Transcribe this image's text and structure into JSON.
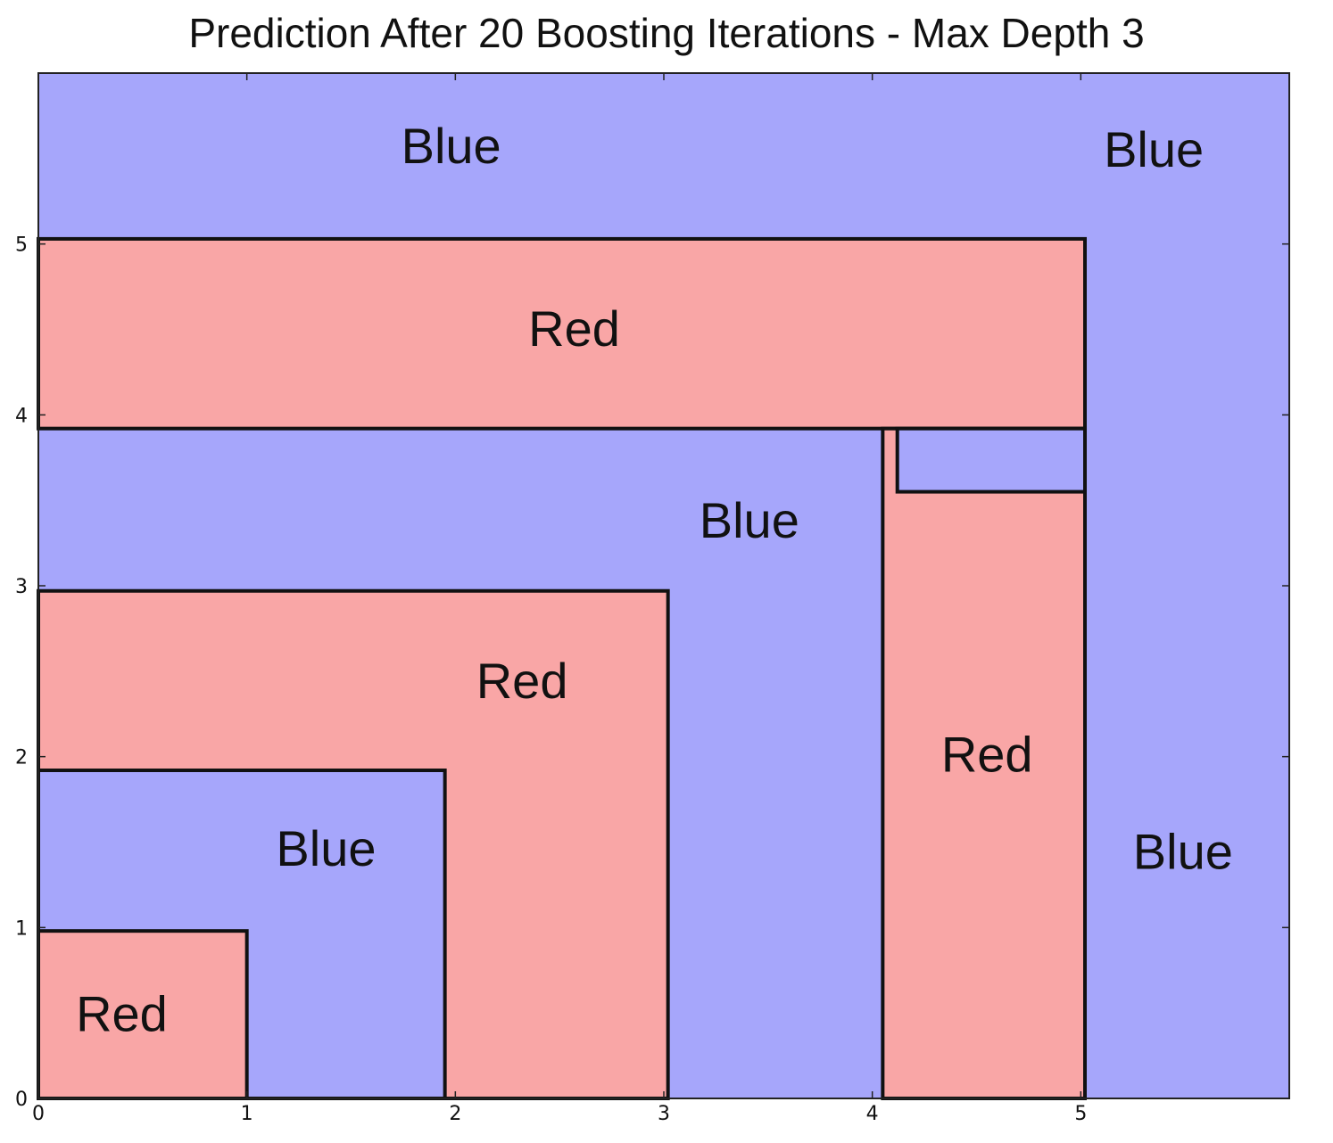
{
  "chart_data": {
    "type": "heatmap",
    "title": "Prediction After 20 Boosting Iterations - Max Depth 3",
    "xlabel": "",
    "ylabel": "",
    "xlim": [
      0,
      6
    ],
    "ylim": [
      0,
      6
    ],
    "x_ticks": [
      "0",
      "1",
      "2",
      "3",
      "4",
      "5"
    ],
    "y_ticks": [
      "0",
      "1",
      "2",
      "3",
      "4",
      "5"
    ],
    "grid": false,
    "colors": {
      "Blue": "#a6a6fb",
      "Red": "#f9a6a6",
      "boundary": "#111111"
    },
    "red_regions": [
      {
        "label": "Red",
        "x": [
          0,
          5.02
        ],
        "y": [
          3.92,
          5.03
        ]
      },
      {
        "label": "Red",
        "x": [
          0,
          3.02
        ],
        "y": [
          0,
          2.97
        ]
      },
      {
        "label": "Red",
        "x": [
          4.05,
          5.02
        ],
        "y": [
          0,
          3.92
        ]
      },
      {
        "label": "Red",
        "x": [
          0,
          1.0
        ],
        "y": [
          0,
          0.98
        ]
      }
    ],
    "blue_regions": [
      {
        "label": "Blue",
        "x": [
          0,
          1.95
        ],
        "y": [
          0,
          1.92
        ]
      },
      {
        "label": "Blue",
        "x": [
          4.12,
          5.02
        ],
        "y": [
          3.55,
          3.92
        ]
      }
    ],
    "annotations": [
      {
        "text": "Blue",
        "x": 1.98,
        "y": 5.55
      },
      {
        "text": "Blue",
        "x": 5.35,
        "y": 5.53
      },
      {
        "text": "Red",
        "x": 2.57,
        "y": 4.48
      },
      {
        "text": "Blue",
        "x": 3.41,
        "y": 3.36
      },
      {
        "text": "Red",
        "x": 2.32,
        "y": 2.42
      },
      {
        "text": "Red",
        "x": 4.55,
        "y": 1.99
      },
      {
        "text": "Blue",
        "x": 1.38,
        "y": 1.44
      },
      {
        "text": "Blue",
        "x": 5.49,
        "y": 1.42
      },
      {
        "text": "Red",
        "x": 0.4,
        "y": 0.47
      }
    ]
  }
}
